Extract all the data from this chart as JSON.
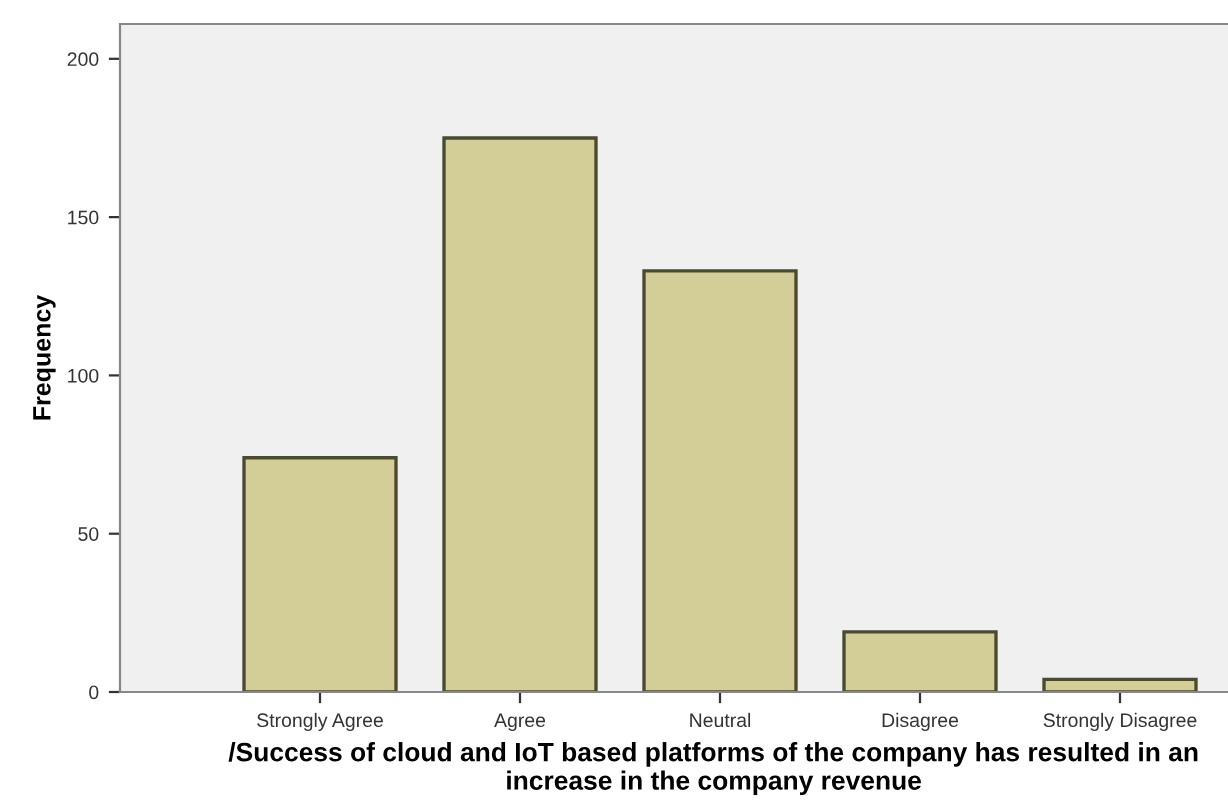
{
  "chart_data": {
    "type": "bar",
    "categories": [
      "Strongly Agree",
      "Agree",
      "Neutral",
      "Disagree",
      "Strongly Disagree"
    ],
    "values": [
      74,
      175,
      133,
      19,
      4
    ],
    "color": "#d3ce97",
    "xlabel": "/Success of cloud and IoT based platforms of the company has resulted in an increase in the company revenue",
    "ylabel": "Frequency",
    "ylim": [
      0,
      211
    ],
    "yticks": [
      0,
      50,
      100,
      150,
      200
    ],
    "grid": false
  }
}
